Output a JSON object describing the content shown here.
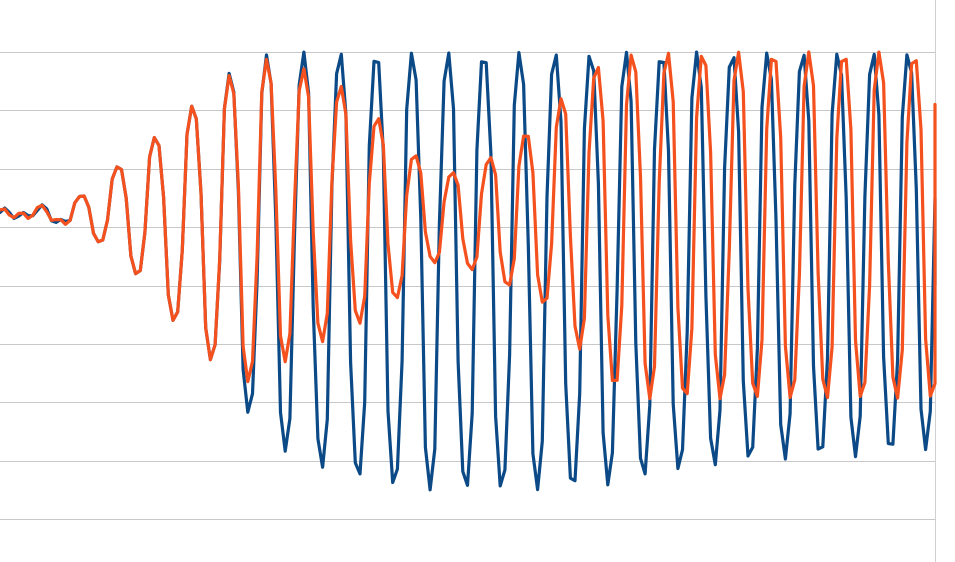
{
  "chart_data": {
    "type": "line",
    "title": "",
    "xlabel": "",
    "ylabel": "",
    "grid": true,
    "legend": "none",
    "x_range": [
      0,
      100
    ],
    "ylim": [
      -5,
      3
    ],
    "gridlines_y": [
      3,
      2,
      1,
      0,
      -1,
      -2,
      -3,
      -4,
      -5
    ],
    "x_step": 0.5,
    "series": [
      {
        "color": "#0b4a86",
        "envelope": {
          "x": [
            0,
            7,
            10,
            13,
            17,
            20,
            23,
            25,
            27,
            30,
            34,
            38,
            42,
            46,
            50,
            54,
            58,
            62,
            66,
            70,
            74,
            78,
            82,
            86,
            90,
            94,
            97,
            99.5
          ],
          "upper": [
            0.25,
            0.35,
            0.7,
            1.1,
            1.6,
            2.0,
            2.45,
            2.7,
            2.9,
            3.0,
            3.0,
            3.0,
            3.0,
            3.0,
            3.0,
            3.0,
            3.0,
            3.0,
            3.0,
            3.0,
            3.0,
            3.0,
            3.0,
            3.0,
            3.0,
            3.0,
            3.0,
            3.0
          ],
          "lower": [
            0.25,
            0.05,
            -0.2,
            -0.5,
            -1.3,
            -1.9,
            -2.35,
            -2.8,
            -3.3,
            -3.8,
            -4.1,
            -4.3,
            -4.45,
            -4.5,
            -4.5,
            -4.5,
            -4.5,
            -4.5,
            -4.4,
            -4.25,
            -4.15,
            -4.05,
            -4.0,
            -3.95,
            -3.95,
            -3.9,
            -3.85,
            -3.8
          ]
        },
        "period": [
          [
            0,
            4.5
          ],
          [
            10,
            4.0
          ],
          [
            25,
            4.0
          ],
          [
            40,
            3.85
          ],
          [
            60,
            3.8
          ],
          [
            100,
            3.75
          ]
        ],
        "phase": 0.25,
        "last_point": -1.0
      },
      {
        "color": "#f4511e",
        "envelope": {
          "x": [
            0,
            7,
            10,
            13,
            17,
            20,
            23,
            25,
            27,
            30,
            34,
            38,
            42,
            46,
            50,
            54,
            58,
            60,
            62,
            64,
            66,
            68,
            70,
            74,
            78,
            82,
            86,
            90,
            94,
            97,
            99.5
          ],
          "upper": [
            0.25,
            0.35,
            0.7,
            1.1,
            1.6,
            2.0,
            2.45,
            2.65,
            2.85,
            2.9,
            2.6,
            2.3,
            1.6,
            1.0,
            0.9,
            1.4,
            1.8,
            2.2,
            2.6,
            2.8,
            2.9,
            3.0,
            3.0,
            3.0,
            3.0,
            3.0,
            3.0,
            3.0,
            3.0,
            3.0,
            2.9
          ],
          "lower": [
            0.25,
            0.05,
            -0.2,
            -0.5,
            -1.3,
            -1.9,
            -2.35,
            -2.5,
            -2.7,
            -2.35,
            -2.0,
            -1.7,
            -1.3,
            -0.6,
            -0.7,
            -1.0,
            -1.3,
            -1.7,
            -2.1,
            -2.5,
            -2.8,
            -2.9,
            -2.95,
            -2.95,
            -2.95,
            -2.95,
            -2.95,
            -2.95,
            -2.95,
            -2.95,
            -2.95
          ]
        },
        "period": [
          [
            0,
            4.5
          ],
          [
            10,
            4.0
          ],
          [
            25,
            4.0
          ],
          [
            30,
            3.95
          ],
          [
            45,
            4.0
          ],
          [
            60,
            3.8
          ],
          [
            100,
            3.75
          ]
        ],
        "phase": 0.25,
        "last_point": 2.1
      }
    ]
  }
}
